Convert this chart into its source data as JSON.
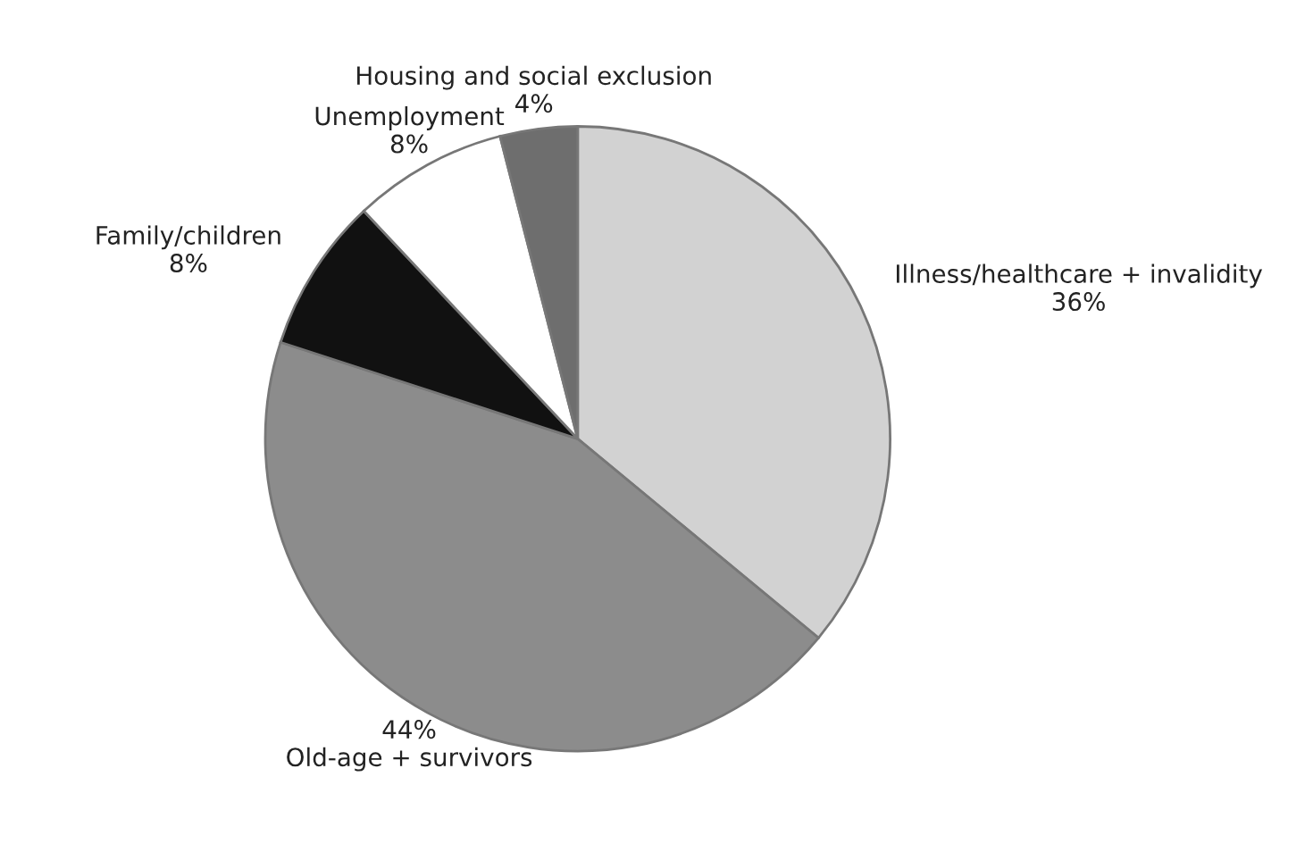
{
  "chart_data": {
    "type": "pie",
    "categories": [
      "Illness/healthcare + invalidity",
      "Old-age + survivors",
      "Family/children",
      "Unemployment",
      "Housing and social exclusion"
    ],
    "values": [
      36,
      44,
      8,
      8,
      4
    ],
    "colors": [
      "#d2d2d2",
      "#8c8c8c",
      "#111111",
      "#ffffff",
      "#6e6e6e"
    ],
    "value_labels": [
      "36%",
      "44%",
      "8%",
      "8%",
      "4%"
    ]
  }
}
